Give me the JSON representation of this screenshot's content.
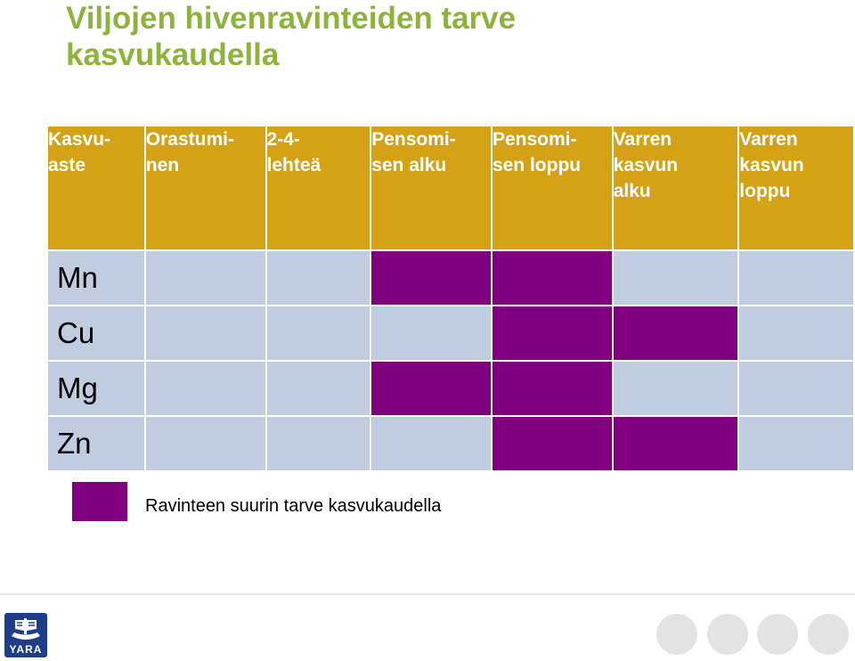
{
  "title": "Viljojen hivenravinteiden tarve\nkasvukaudella",
  "table": {
    "headers": [
      "Kasvu-\naste",
      "Orastumi-\nnen",
      "2-4-\nlehteä",
      "Pensomi-\nsen alku",
      "Pensomi-\nsen loppu",
      "Varren\nkasvun\nalku",
      "Varren\nkasvun\nloppu"
    ],
    "rows": [
      {
        "nutrient": "Mn",
        "need": [
          false,
          false,
          true,
          true,
          false,
          false
        ]
      },
      {
        "nutrient": "Cu",
        "need": [
          false,
          false,
          false,
          true,
          true,
          false
        ]
      },
      {
        "nutrient": "Mg",
        "need": [
          false,
          false,
          true,
          true,
          false,
          false
        ]
      },
      {
        "nutrient": "Zn",
        "need": [
          false,
          false,
          false,
          true,
          true,
          false
        ]
      }
    ]
  },
  "legend": {
    "label": "Ravinteen suurin tarve kasvukaudella"
  },
  "logo": {
    "text": "YARA"
  },
  "colors": {
    "title": "#8db33a",
    "header_bg": "#d4a214",
    "cell_bg": "#c0cde0",
    "need": "#800080",
    "logo_bg": "#1d3f8a"
  }
}
